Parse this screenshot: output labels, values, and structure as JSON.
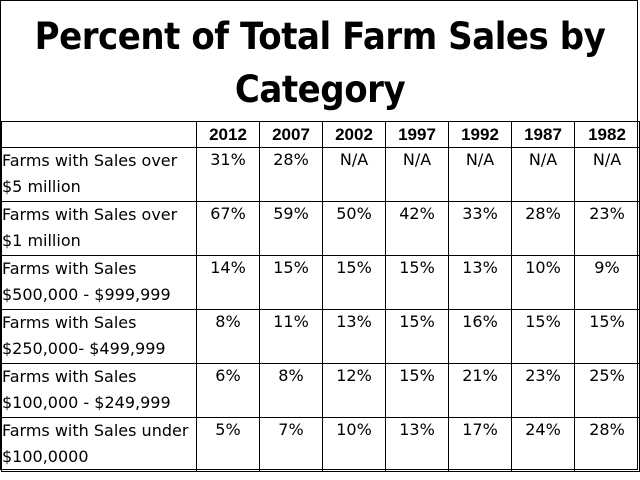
{
  "chart_data": {
    "type": "table",
    "title": "Percent of Total Farm Sales by Category",
    "columns": [
      "2012",
      "2007",
      "2002",
      "1997",
      "1992",
      "1987",
      "1982"
    ],
    "rows": [
      {
        "label": "Farms with Sales over $5 million",
        "values": [
          "31%",
          "28%",
          "N/A",
          "N/A",
          "N/A",
          "N/A",
          "N/A"
        ]
      },
      {
        "label": "Farms with Sales over $1 million",
        "values": [
          "67%",
          "59%",
          "50%",
          "42%",
          "33%",
          "28%",
          "23%"
        ]
      },
      {
        "label": "Farms with Sales $500,000 - $999,999",
        "values": [
          "14%",
          "15%",
          "15%",
          "15%",
          "13%",
          "10%",
          "9%"
        ]
      },
      {
        "label": "Farms with Sales $250,000- $499,999",
        "values": [
          "8%",
          "11%",
          "13%",
          "15%",
          "16%",
          "15%",
          "15%"
        ]
      },
      {
        "label": "Farms with Sales $100,000 - $249,999",
        "values": [
          "6%",
          "8%",
          "12%",
          "15%",
          "21%",
          "23%",
          "25%"
        ]
      },
      {
        "label": "Farms with Sales under $100,0000",
        "values": [
          "5%",
          "7%",
          "10%",
          "13%",
          "17%",
          "24%",
          "28%"
        ]
      }
    ]
  }
}
